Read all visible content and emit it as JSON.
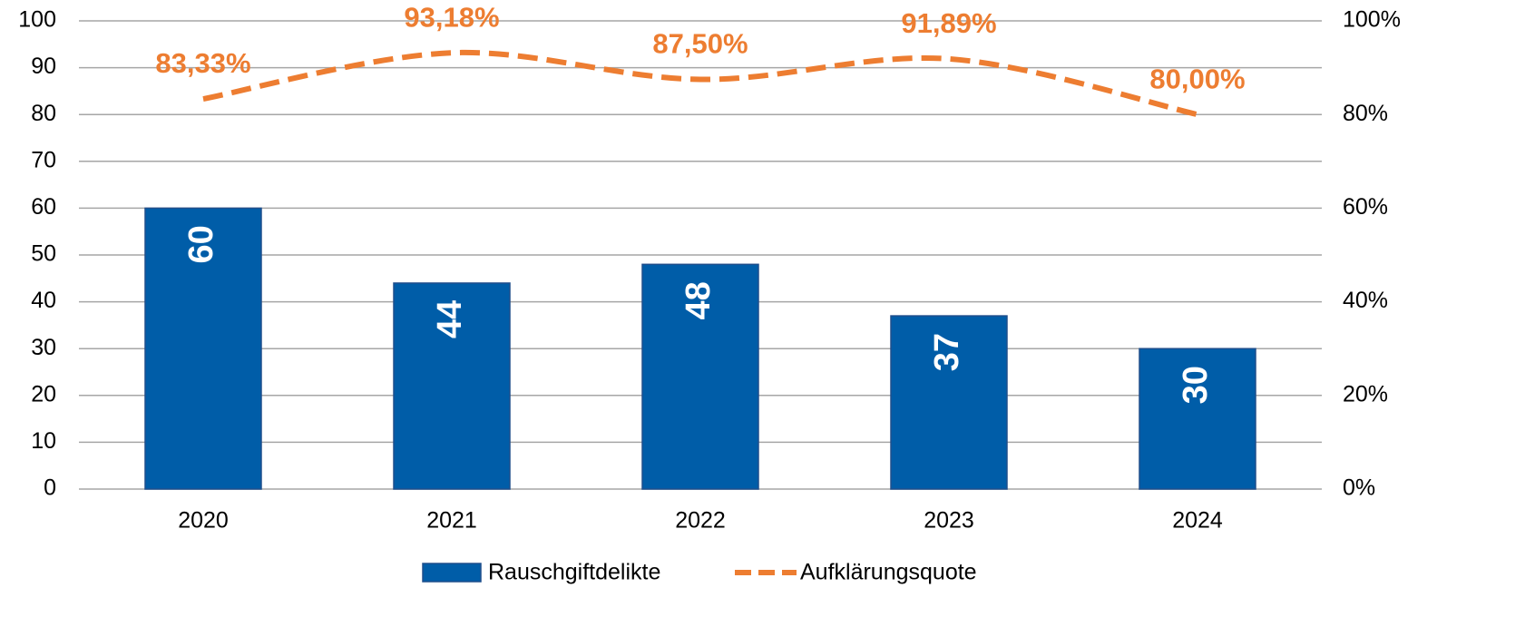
{
  "chart_data": {
    "type": "bar",
    "categories": [
      "2020",
      "2021",
      "2022",
      "2023",
      "2024"
    ],
    "series": [
      {
        "name": "Rauschgiftdelikte",
        "type": "bar",
        "color": "#005da8",
        "values": [
          60,
          44,
          48,
          37,
          30
        ]
      },
      {
        "name": "Aufklärungsquote",
        "type": "line",
        "axis": "y2",
        "color": "#ed7d31",
        "dashed": true,
        "values": [
          83.33,
          93.18,
          87.5,
          91.89,
          80
        ],
        "value_labels": [
          "83,33%",
          "93,18%",
          "87,50%",
          "91,89%",
          "80,00%"
        ]
      }
    ],
    "ylim": [
      0,
      100
    ],
    "yticks": [
      0,
      10,
      20,
      30,
      40,
      50,
      60,
      70,
      80,
      90,
      100
    ],
    "y2lim": [
      0,
      100
    ],
    "y2ticks": [
      {
        "value": 0,
        "label": "0%"
      },
      {
        "value": 20,
        "label": "20%"
      },
      {
        "value": 40,
        "label": "40%"
      },
      {
        "value": 60,
        "label": "60%"
      },
      {
        "value": 80,
        "label": "80%"
      },
      {
        "value": 100,
        "label": "100%"
      }
    ],
    "grid": true,
    "legend": "bottom"
  }
}
